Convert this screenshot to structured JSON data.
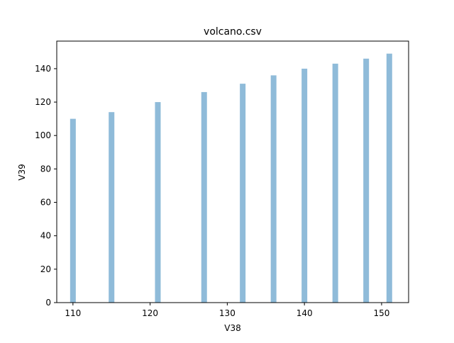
{
  "chart_data": {
    "type": "bar",
    "title": "volcano.csv",
    "xlabel": "V38",
    "ylabel": "V39",
    "x": [
      110,
      115,
      121,
      127,
      132,
      136,
      140,
      144,
      148,
      151
    ],
    "values": [
      110,
      114,
      120,
      126,
      131,
      136,
      140,
      143,
      146,
      149
    ],
    "xlim": [
      107.9,
      153.5
    ],
    "ylim": [
      0,
      156.5
    ],
    "xticks": [
      110,
      120,
      130,
      140,
      150
    ],
    "yticks": [
      0,
      20,
      40,
      60,
      80,
      100,
      120,
      140
    ],
    "bar_color": "#8fbbd9",
    "grid": false,
    "legend": "none"
  }
}
